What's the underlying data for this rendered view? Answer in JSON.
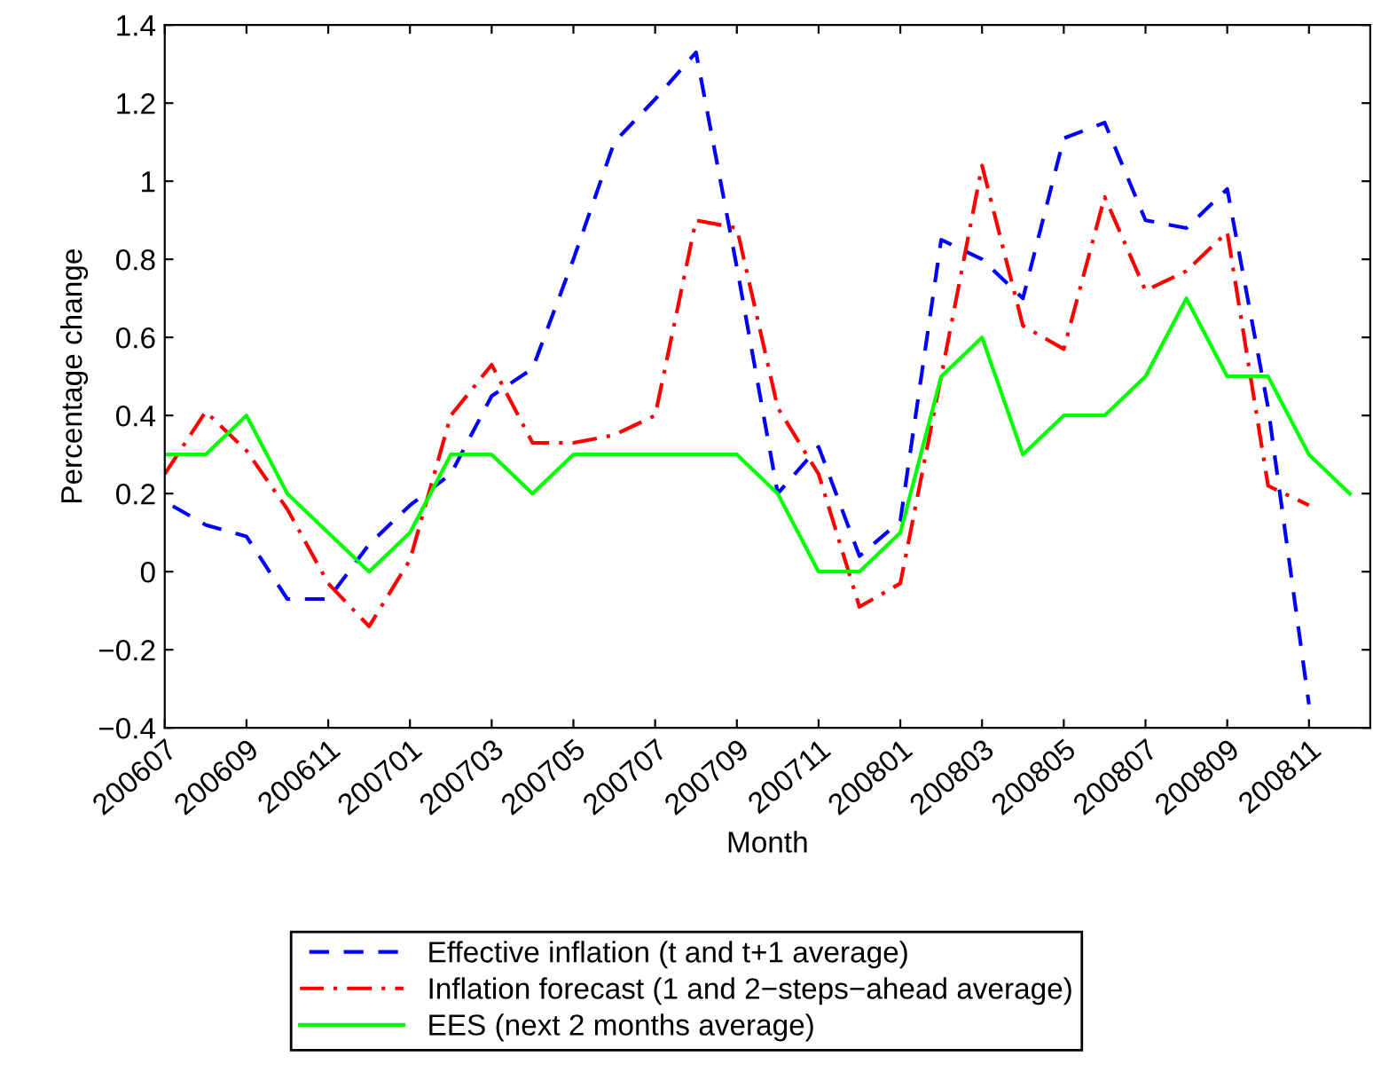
{
  "chart_data": {
    "type": "line",
    "xlabel": "Month",
    "ylabel": "Percentage change",
    "categories": [
      "200607",
      null,
      "200609",
      null,
      "200611",
      null,
      "200701",
      null,
      "200703",
      null,
      "200705",
      null,
      "200707",
      null,
      "200709",
      null,
      "200711",
      null,
      "200801",
      null,
      "200803",
      null,
      "200805",
      null,
      "200807",
      null,
      "200809",
      null,
      "200811",
      null
    ],
    "series": [
      {
        "name": "Effective inflation (t and t+1 average)",
        "color": "#0000ff",
        "line_style": "dashed",
        "values": [
          0.18,
          0.12,
          0.09,
          -0.07,
          -0.07,
          0.07,
          0.17,
          0.25,
          0.45,
          0.52,
          0.8,
          1.1,
          1.21,
          1.33,
          0.78,
          0.2,
          0.32,
          0.04,
          0.13,
          0.85,
          0.8,
          0.7,
          1.11,
          1.15,
          0.9,
          0.88,
          0.98,
          0.42,
          -0.34,
          null
        ]
      },
      {
        "name": "Inflation forecast (1 and 2−steps−ahead average)",
        "color": "#ff0000",
        "line_style": "dashdot",
        "values": [
          0.25,
          0.41,
          0.31,
          0.16,
          -0.03,
          -0.14,
          0.03,
          0.4,
          0.53,
          0.33,
          0.33,
          0.35,
          0.4,
          0.9,
          0.88,
          0.42,
          0.25,
          -0.09,
          -0.03,
          0.5,
          1.04,
          0.63,
          0.57,
          0.96,
          0.72,
          0.77,
          0.87,
          0.22,
          0.17,
          null
        ]
      },
      {
        "name": "EES (next 2 months average)",
        "color": "#00ff00",
        "line_style": "solid",
        "values": [
          0.3,
          0.3,
          0.4,
          0.2,
          0.1,
          0.0,
          0.1,
          0.3,
          0.3,
          0.2,
          0.3,
          0.3,
          0.3,
          0.3,
          0.3,
          0.2,
          0.0,
          0.0,
          0.1,
          0.5,
          0.6,
          0.3,
          0.4,
          0.4,
          0.5,
          0.7,
          0.5,
          0.5,
          0.3,
          0.2
        ]
      }
    ],
    "ylim": [
      -0.4,
      1.4
    ],
    "yticks": [
      -0.4,
      -0.2,
      0,
      0.2,
      0.4,
      0.6,
      0.8,
      1,
      1.2,
      1.4
    ],
    "grid": false,
    "legend": "bottom"
  }
}
